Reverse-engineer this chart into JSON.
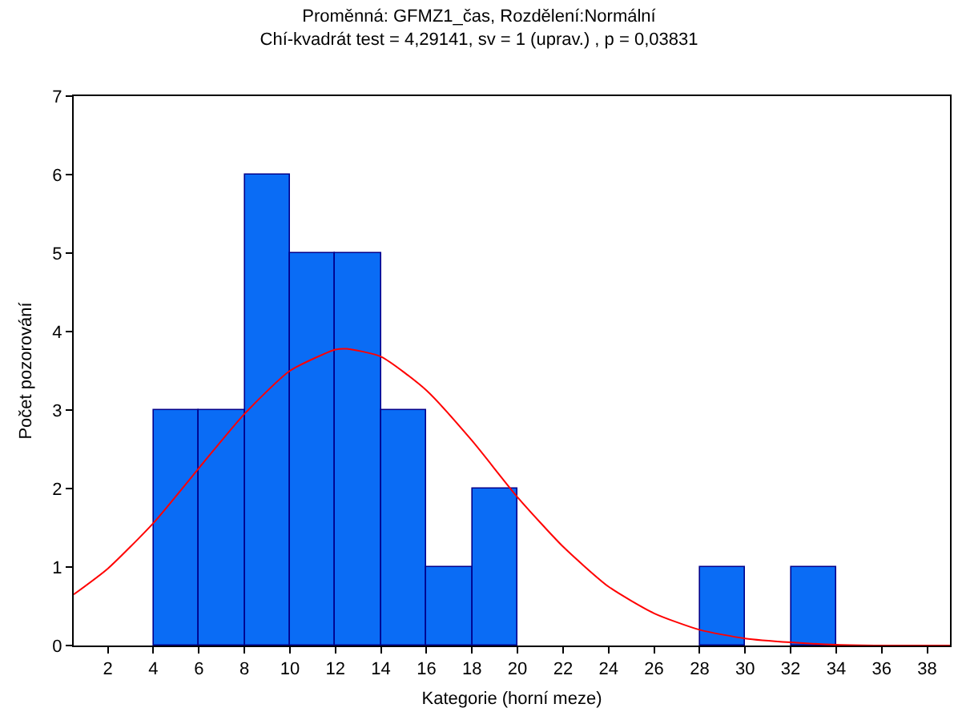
{
  "chart_data": {
    "type": "histogram",
    "title": "Proměnná: GFMZ1_čas, Rozdělení:Normální",
    "subtitle": "Chí-kvadrát test = 4,29141, sv = 1 (uprav.) , p = 0,03831",
    "xlabel": "Kategorie (horní meze)",
    "ylabel": "Počet pozorování",
    "bins": [
      4,
      6,
      8,
      10,
      12,
      14,
      16,
      18,
      20,
      22,
      24,
      26,
      28,
      30,
      32,
      34
    ],
    "values": [
      3,
      3,
      6,
      5,
      5,
      3,
      1,
      2,
      0,
      0,
      0,
      0,
      1,
      0,
      1
    ],
    "color": "#0a6cf5",
    "series": [
      {
        "type": "line",
        "color": "#ff0000",
        "x": [
          0.5,
          2,
          4,
          6,
          8,
          10,
          12,
          12.5,
          14,
          16,
          18,
          20,
          22,
          24,
          26,
          28,
          30,
          32,
          34,
          36,
          39
        ],
        "values": [
          0.65,
          0.98,
          1.56,
          2.26,
          2.95,
          3.5,
          3.77,
          3.78,
          3.68,
          3.25,
          2.61,
          1.89,
          1.26,
          0.75,
          0.41,
          0.2,
          0.09,
          0.04,
          0.01,
          0,
          0
        ]
      }
    ],
    "xlim": [
      0.5,
      39
    ],
    "xticks": [
      2,
      4,
      6,
      8,
      10,
      12,
      14,
      16,
      18,
      20,
      22,
      24,
      26,
      28,
      30,
      32,
      34,
      36,
      38
    ],
    "ylim": [
      0,
      7
    ],
    "yticks": [
      0,
      1,
      2,
      3,
      4,
      5,
      6,
      7
    ],
    "grid": false,
    "marker": "none",
    "line_style": "solid"
  }
}
